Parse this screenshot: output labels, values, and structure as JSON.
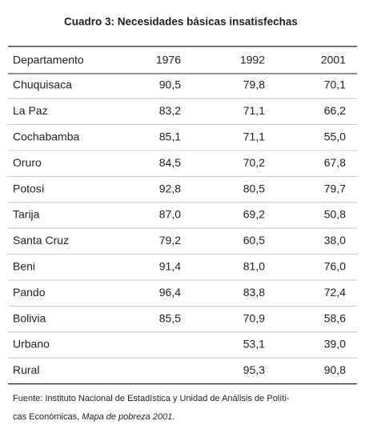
{
  "title": "Cuadro 3: Necesidades básicas insatisfechas",
  "table": {
    "header": [
      "Departamento",
      "1976",
      "1992",
      "2001"
    ],
    "rows": [
      [
        "Chuquisaca",
        "90,5",
        "79,8",
        "70,1"
      ],
      [
        "La Paz",
        "83,2",
        "71,1",
        "66,2"
      ],
      [
        "Cochabamba",
        "85,1",
        "71,1",
        "55,0"
      ],
      [
        "Oruro",
        "84,5",
        "70,2",
        "67,8"
      ],
      [
        "Potosí",
        "92,8",
        "80,5",
        "79,7"
      ],
      [
        "Tarija",
        "87,0",
        "69,2",
        "50,8"
      ],
      [
        "Santa Cruz",
        "79,2",
        "60,5",
        "38,0"
      ],
      [
        "Beni",
        "91,4",
        "81,0",
        "76,0"
      ],
      [
        "Pando",
        "96,4",
        "83,8",
        "72,4"
      ],
      [
        "Bolivia",
        "85,5",
        "70,9",
        "58,6"
      ],
      [
        "Urbano",
        null,
        "53,1",
        "39,0"
      ],
      [
        "Rural",
        null,
        "95,3",
        "90,8"
      ]
    ]
  },
  "footnote": {
    "line1": "Fuente: Instituto Nacional de Estadística y Unidad de Análisis de Políti-",
    "line2_prefix": "cas Económicas, ",
    "source_title": "Mapa de pobreza 2001",
    "line2_suffix": "."
  }
}
